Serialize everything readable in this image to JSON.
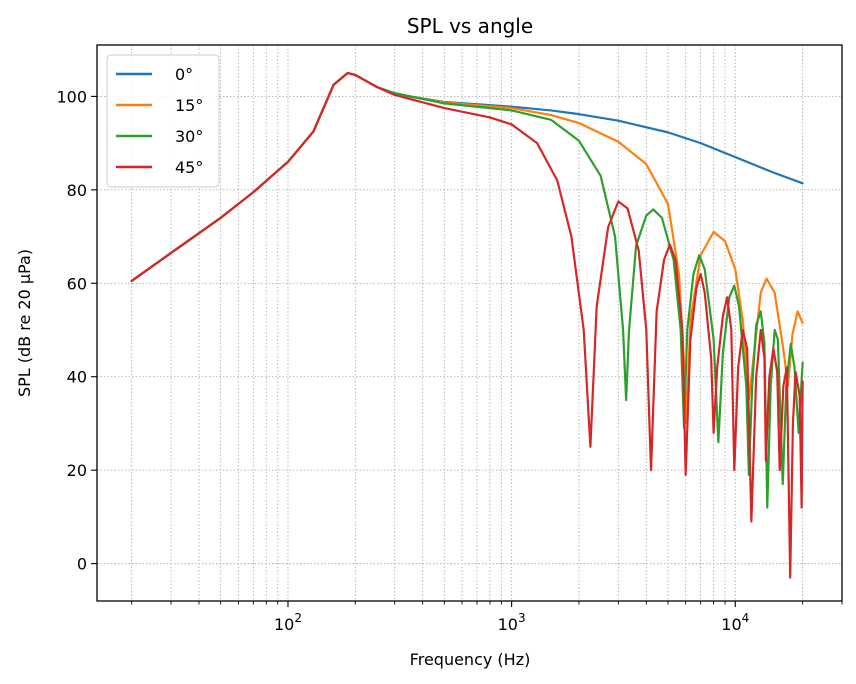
{
  "chart_data": {
    "type": "line",
    "title": "SPL vs angle",
    "xlabel": "Frequency (Hz)",
    "ylabel": "SPL (dB re 20 µPa)",
    "x_scale": "log",
    "xlim": [
      14,
      30000
    ],
    "ylim": [
      -8,
      111
    ],
    "x_ticks": [
      {
        "value": 100,
        "base": "10",
        "exp": "2"
      },
      {
        "value": 1000,
        "base": "10",
        "exp": "3"
      },
      {
        "value": 10000,
        "base": "10",
        "exp": "4"
      }
    ],
    "y_ticks": [
      0,
      20,
      40,
      60,
      80,
      100
    ],
    "y_tick_labels": [
      "0",
      "20",
      "40",
      "60",
      "80",
      "100"
    ],
    "grid": true,
    "legend_position": "top-left",
    "series": [
      {
        "name": "0°",
        "color": "#1f77b4",
        "points": [
          [
            20,
            60.5
          ],
          [
            30,
            66.5
          ],
          [
            50,
            74
          ],
          [
            70,
            79.5
          ],
          [
            100,
            86
          ],
          [
            130,
            92.5
          ],
          [
            160,
            102.5
          ],
          [
            185,
            105
          ],
          [
            200,
            104.6
          ],
          [
            250,
            102
          ],
          [
            300,
            100.5
          ],
          [
            500,
            98.8
          ],
          [
            1000,
            97.8
          ],
          [
            1500,
            97
          ],
          [
            2000,
            96.2
          ],
          [
            3000,
            94.8
          ],
          [
            5000,
            92.3
          ],
          [
            7000,
            90
          ],
          [
            10000,
            87
          ],
          [
            15000,
            83.6
          ],
          [
            20000,
            81.4
          ]
        ]
      },
      {
        "name": "15°",
        "color": "#ff7f0e",
        "points": [
          [
            20,
            60.5
          ],
          [
            30,
            66.5
          ],
          [
            50,
            74
          ],
          [
            70,
            79.5
          ],
          [
            100,
            86
          ],
          [
            130,
            92.5
          ],
          [
            160,
            102.5
          ],
          [
            185,
            105
          ],
          [
            200,
            104.6
          ],
          [
            250,
            102
          ],
          [
            300,
            100.5
          ],
          [
            500,
            98.7
          ],
          [
            1000,
            97.5
          ],
          [
            1500,
            96
          ],
          [
            2000,
            94.3
          ],
          [
            3000,
            90.3
          ],
          [
            4000,
            85.5
          ],
          [
            5000,
            77
          ],
          [
            5600,
            62
          ],
          [
            5950,
            40
          ],
          [
            6050,
            30
          ],
          [
            6300,
            52
          ],
          [
            7000,
            66
          ],
          [
            8000,
            71
          ],
          [
            9000,
            69
          ],
          [
            10000,
            63
          ],
          [
            10800,
            52
          ],
          [
            11500,
            35
          ],
          [
            12000,
            43
          ],
          [
            13000,
            58
          ],
          [
            13800,
            61
          ],
          [
            15000,
            58
          ],
          [
            16500,
            45
          ],
          [
            17200,
            38
          ],
          [
            18000,
            49
          ],
          [
            19000,
            54
          ],
          [
            20000,
            51.5
          ]
        ]
      },
      {
        "name": "30°",
        "color": "#2ca02c",
        "points": [
          [
            20,
            60.5
          ],
          [
            30,
            66.5
          ],
          [
            50,
            74
          ],
          [
            70,
            79.5
          ],
          [
            100,
            86
          ],
          [
            130,
            92.5
          ],
          [
            160,
            102.5
          ],
          [
            185,
            105
          ],
          [
            200,
            104.6
          ],
          [
            250,
            102
          ],
          [
            300,
            100.7
          ],
          [
            500,
            98.5
          ],
          [
            1000,
            97
          ],
          [
            1500,
            95
          ],
          [
            2000,
            90.5
          ],
          [
            2500,
            83
          ],
          [
            2900,
            70
          ],
          [
            3150,
            50
          ],
          [
            3250,
            35
          ],
          [
            3350,
            50
          ],
          [
            3600,
            68
          ],
          [
            4000,
            74.5
          ],
          [
            4300,
            75.8
          ],
          [
            4700,
            74
          ],
          [
            5300,
            65
          ],
          [
            5700,
            50
          ],
          [
            5900,
            29
          ],
          [
            6100,
            50
          ],
          [
            6500,
            62
          ],
          [
            6900,
            66
          ],
          [
            7300,
            63
          ],
          [
            8000,
            48
          ],
          [
            8400,
            26
          ],
          [
            8800,
            45
          ],
          [
            9400,
            57
          ],
          [
            9900,
            59.5
          ],
          [
            10400,
            55
          ],
          [
            11200,
            38
          ],
          [
            11500,
            19
          ],
          [
            11900,
            38
          ],
          [
            12400,
            51
          ],
          [
            13000,
            54
          ],
          [
            13500,
            47
          ],
          [
            13900,
            12
          ],
          [
            14400,
            38
          ],
          [
            15000,
            50
          ],
          [
            15500,
            48
          ],
          [
            16300,
            17
          ],
          [
            16900,
            38
          ],
          [
            17700,
            47
          ],
          [
            18400,
            42
          ],
          [
            19200,
            28
          ],
          [
            20000,
            43
          ]
        ]
      },
      {
        "name": "45°",
        "color": "#d62728",
        "points": [
          [
            20,
            60.5
          ],
          [
            30,
            66.5
          ],
          [
            50,
            74
          ],
          [
            70,
            79.5
          ],
          [
            100,
            86
          ],
          [
            130,
            92.5
          ],
          [
            160,
            102.5
          ],
          [
            185,
            105
          ],
          [
            200,
            104.6
          ],
          [
            250,
            102
          ],
          [
            300,
            100.3
          ],
          [
            500,
            97.5
          ],
          [
            800,
            95.5
          ],
          [
            1000,
            94
          ],
          [
            1300,
            90
          ],
          [
            1600,
            82
          ],
          [
            1850,
            70
          ],
          [
            2100,
            50
          ],
          [
            2250,
            25
          ],
          [
            2400,
            55
          ],
          [
            2700,
            72
          ],
          [
            3000,
            77.5
          ],
          [
            3300,
            76
          ],
          [
            3700,
            67
          ],
          [
            4000,
            50
          ],
          [
            4200,
            20
          ],
          [
            4450,
            54
          ],
          [
            4800,
            65
          ],
          [
            5100,
            68.3
          ],
          [
            5400,
            65
          ],
          [
            5800,
            50
          ],
          [
            6000,
            19
          ],
          [
            6300,
            48
          ],
          [
            6700,
            59
          ],
          [
            7000,
            62
          ],
          [
            7300,
            58
          ],
          [
            7800,
            44
          ],
          [
            8000,
            28
          ],
          [
            8300,
            42
          ],
          [
            8800,
            53
          ],
          [
            9200,
            57
          ],
          [
            9600,
            50
          ],
          [
            9900,
            20
          ],
          [
            10300,
            42
          ],
          [
            10800,
            50
          ],
          [
            11300,
            46
          ],
          [
            11800,
            9
          ],
          [
            12400,
            40
          ],
          [
            13000,
            50
          ],
          [
            13500,
            44
          ],
          [
            13700,
            22
          ],
          [
            14200,
            40
          ],
          [
            14800,
            46
          ],
          [
            15400,
            41
          ],
          [
            15800,
            20
          ],
          [
            16400,
            38
          ],
          [
            17000,
            42
          ],
          [
            17600,
            -3
          ],
          [
            18100,
            30
          ],
          [
            18600,
            41
          ],
          [
            19400,
            36
          ],
          [
            19800,
            12
          ],
          [
            20000,
            39
          ]
        ]
      }
    ]
  }
}
